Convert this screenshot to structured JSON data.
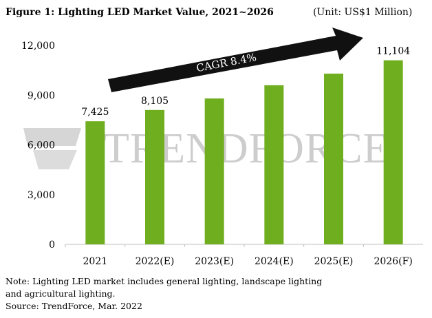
{
  "header": {
    "title": "Figure 1: Lighting LED Market Value, 2021~2026",
    "unit": "(Unit: US$1 Million)"
  },
  "watermark": {
    "text": "TRENDFORCE"
  },
  "annotation": {
    "cagr": "CAGR 8.4%"
  },
  "note": {
    "lines": [
      "Note: Lighting LED market includes general lighting, landscape lighting",
      "and agricultural lighting.",
      "Source: TrendForce, Mar. 2022"
    ]
  },
  "colors": {
    "bar": "#6fae1f",
    "arrow": "#111111",
    "watermark": "#cfcfcf"
  },
  "chart_data": {
    "type": "bar",
    "categories": [
      "2021",
      "2022(E)",
      "2023(E)",
      "2024(E)",
      "2025(E)",
      "2026(F)"
    ],
    "values": [
      7425,
      8105,
      8800,
      9600,
      10300,
      11104
    ],
    "data_labels": [
      "7,425",
      "8,105",
      "",
      "",
      "",
      "11,104"
    ],
    "ylim": [
      0,
      12000
    ],
    "yticks": [
      0,
      3000,
      6000,
      9000,
      12000
    ],
    "ytick_labels": [
      "0",
      "3,000",
      "6,000",
      "9,000",
      "12,000"
    ],
    "grid": false,
    "legend": "none"
  }
}
